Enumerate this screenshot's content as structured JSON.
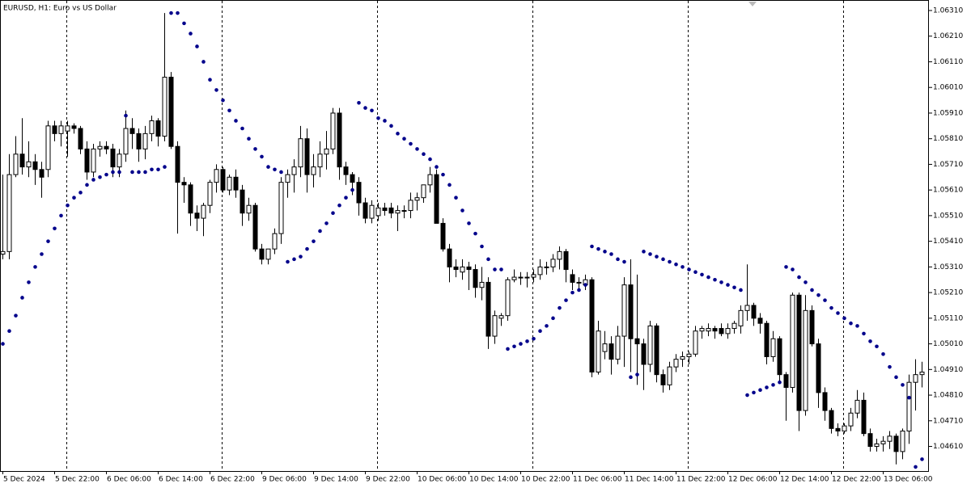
{
  "chart_data": {
    "type": "candlestick",
    "title": "EURUSD, H1:  Euro vs US Dollar",
    "categories": [
      "5 Dec 2024",
      null,
      null,
      null,
      null,
      null,
      null,
      null,
      "5 Dec 22:00",
      null,
      null,
      null,
      null,
      null,
      null,
      null,
      "6 Dec 06:00",
      null,
      null,
      null,
      null,
      null,
      null,
      null,
      "6 Dec 14:00",
      null,
      null,
      null,
      null,
      null,
      null,
      null,
      "6 Dec 22:00",
      null,
      null,
      null,
      null,
      null,
      null,
      null,
      "9 Dec 06:00",
      null,
      null,
      null,
      null,
      null,
      null,
      null,
      "9 Dec 14:00",
      null,
      null,
      null,
      null,
      null,
      null,
      null,
      "9 Dec 22:00",
      null,
      null,
      null,
      null,
      null,
      null,
      null,
      "10 Dec 06:00",
      null,
      null,
      null,
      null,
      null,
      null,
      null,
      "10 Dec 14:00",
      null,
      null,
      null,
      null,
      null,
      null,
      null,
      "10 Dec 22:00",
      null,
      null,
      null,
      null,
      null,
      null,
      null,
      "11 Dec 06:00",
      null,
      null,
      null,
      null,
      null,
      null,
      null,
      "11 Dec 14:00",
      null,
      null,
      null,
      null,
      null,
      null,
      null,
      "11 Dec 22:00",
      null,
      null,
      null,
      null,
      null,
      null,
      null,
      "12 Dec 06:00",
      null,
      null,
      null,
      null,
      null,
      null,
      null,
      "12 Dec 14:00",
      null,
      null,
      null,
      null,
      null,
      null,
      null,
      "12 Dec 22:00",
      null,
      null,
      null,
      null,
      null,
      null,
      null,
      "13 Dec 06:00",
      null,
      null,
      null,
      null,
      null,
      null
    ],
    "open": [
      1.0536,
      1.0537,
      1.0567,
      1.0575,
      1.057,
      1.0572,
      1.0569,
      1.0569,
      1.0586,
      1.0583,
      1.0584,
      1.0586,
      1.0585,
      1.0577,
      1.0568,
      1.0577,
      1.0578,
      1.0577,
      1.057,
      1.0575,
      1.0585,
      1.0583,
      1.0577,
      1.0583,
      1.0588,
      1.0582,
      1.0605,
      1.0578,
      1.0564,
      1.0563,
      1.0552,
      1.055,
      1.0555,
      1.0564,
      1.0569,
      1.0561,
      1.0566,
      1.0561,
      1.0552,
      1.0555,
      1.0538,
      1.0534,
      1.0538,
      1.0544,
      1.0564,
      1.0567,
      1.057,
      1.0581,
      1.0567,
      1.057,
      1.0575,
      1.0577,
      1.0591,
      1.057,
      1.0567,
      1.0564,
      1.0556,
      1.055,
      1.0551,
      1.0554,
      1.0554,
      1.0552,
      1.0553,
      1.0553,
      1.0557,
      1.0558,
      1.0563,
      1.0567,
      1.0548,
      1.0538,
      1.0531,
      1.0529,
      1.0531,
      1.053,
      1.0523,
      1.0525,
      1.0504,
      1.0511,
      1.0512,
      1.0526,
      1.0527,
      1.0527,
      1.0527,
      1.0528,
      1.0531,
      1.0531,
      1.0534,
      1.0537,
      1.0528,
      1.0525,
      1.0524,
      1.0526,
      1.049,
      1.0498,
      1.0501,
      1.0495,
      1.0504,
      1.0524,
      1.0503,
      1.0501,
      1.0493,
      1.0508,
      1.0489,
      1.0485,
      1.0492,
      1.0495,
      1.0496,
      1.0497,
      1.0506,
      1.0506,
      1.0507,
      1.0507,
      1.0505,
      1.0507,
      1.0508,
      1.0514,
      1.0516,
      1.0511,
      1.0509,
      1.0496,
      1.0503,
      1.0489,
      1.0484,
      1.052,
      1.0475,
      1.0514,
      1.0501,
      1.0482,
      1.0475,
      1.0468,
      1.0467,
      1.0469,
      1.0474,
      1.0479,
      1.0466,
      1.0461,
      1.0462,
      1.0463,
      1.0465,
      1.0459,
      1.0467,
      1.0486,
      1.0489
    ],
    "high": [
      1.0567,
      1.0575,
      1.0582,
      1.0589,
      1.058,
      1.0575,
      1.0572,
      1.0588,
      1.0588,
      1.0588,
      1.0588,
      1.0587,
      1.0586,
      1.058,
      1.0579,
      1.058,
      1.058,
      1.0579,
      1.0577,
      1.0592,
      1.0589,
      1.0585,
      1.0586,
      1.059,
      1.0589,
      1.063,
      1.0607,
      1.058,
      1.0566,
      1.0564,
      1.0555,
      1.0556,
      1.0565,
      1.0571,
      1.057,
      1.0567,
      1.0569,
      1.0563,
      1.0558,
      1.0556,
      1.054,
      1.0538,
      1.0546,
      1.0566,
      1.0569,
      1.0573,
      1.0586,
      1.0585,
      1.0575,
      1.058,
      1.0584,
      1.0593,
      1.0593,
      1.0572,
      1.0568,
      1.0566,
      1.0558,
      1.0557,
      1.0556,
      1.0556,
      1.0556,
      1.0555,
      1.0555,
      1.056,
      1.056,
      1.0563,
      1.057,
      1.0569,
      1.055,
      1.054,
      1.0534,
      1.0534,
      1.0533,
      1.0532,
      1.0531,
      1.0527,
      1.0514,
      1.0513,
      1.0527,
      1.053,
      1.0529,
      1.0529,
      1.053,
      1.0534,
      1.0533,
      1.0536,
      1.0539,
      1.0538,
      1.053,
      1.0527,
      1.0528,
      1.0527,
      1.051,
      1.0506,
      1.0504,
      1.0508,
      1.0527,
      1.0534,
      1.0528,
      1.0503,
      1.051,
      1.0509,
      1.0491,
      1.0494,
      1.0497,
      1.0498,
      1.0498,
      1.0508,
      1.0508,
      1.0509,
      1.0508,
      1.0509,
      1.0509,
      1.051,
      1.0516,
      1.0532,
      1.0517,
      1.0513,
      1.051,
      1.0506,
      1.0504,
      1.049,
      1.0521,
      1.0521,
      1.052,
      1.0516,
      1.0503,
      1.0484,
      1.0476,
      1.047,
      1.047,
      1.0476,
      1.0483,
      1.0482,
      1.0468,
      1.0464,
      1.0465,
      1.0467,
      1.0466,
      1.0468,
      1.0489,
      1.0495,
      1.0494
    ],
    "low": [
      1.0534,
      1.0534,
      1.0566,
      1.0567,
      1.0566,
      1.0563,
      1.0558,
      1.0566,
      1.058,
      1.0578,
      1.0574,
      1.0583,
      1.0575,
      1.0565,
      1.0566,
      1.0574,
      1.0575,
      1.0566,
      1.0566,
      1.0572,
      1.0577,
      1.0572,
      1.0573,
      1.058,
      1.0578,
      1.058,
      1.0577,
      1.0544,
      1.0556,
      1.0547,
      1.0545,
      1.0543,
      1.0552,
      1.056,
      1.056,
      1.0559,
      1.0558,
      1.0547,
      1.0549,
      1.0537,
      1.0532,
      1.0532,
      1.0536,
      1.054,
      1.0558,
      1.056,
      1.0566,
      1.056,
      1.0562,
      1.0566,
      1.0569,
      1.0575,
      1.0565,
      1.0563,
      1.0559,
      1.0551,
      1.0548,
      1.0548,
      1.0549,
      1.0551,
      1.055,
      1.0545,
      1.055,
      1.055,
      1.0553,
      1.0556,
      1.056,
      1.0548,
      1.0537,
      1.0525,
      1.0527,
      1.0526,
      1.0522,
      1.0519,
      1.0518,
      1.0499,
      1.0501,
      1.0508,
      1.051,
      1.0525,
      1.0524,
      1.0523,
      1.0525,
      1.0526,
      1.0528,
      1.0529,
      1.053,
      1.0525,
      1.0522,
      1.0522,
      1.0522,
      1.0488,
      1.0489,
      1.0495,
      1.0489,
      1.0493,
      1.0492,
      1.049,
      1.0485,
      1.0483,
      1.049,
      1.0486,
      1.0482,
      1.0483,
      1.049,
      1.0492,
      1.0493,
      1.0496,
      1.0503,
      1.0504,
      1.0503,
      1.0504,
      1.0503,
      1.0505,
      1.0505,
      1.051,
      1.0508,
      1.0505,
      1.0493,
      1.0494,
      1.0486,
      1.0471,
      1.0482,
      1.0467,
      1.0473,
      1.05,
      1.0476,
      1.0471,
      1.0466,
      1.0465,
      1.0466,
      1.0467,
      1.0472,
      1.0465,
      1.0459,
      1.0459,
      1.0459,
      1.046,
      1.0454,
      1.0456,
      1.0462,
      1.0475,
      1.0484
    ],
    "close": [
      1.0537,
      1.0567,
      1.0575,
      1.057,
      1.0572,
      1.0569,
      1.0566,
      1.0586,
      1.0583,
      1.0586,
      1.0586,
      1.0585,
      1.0577,
      1.0568,
      1.0577,
      1.0578,
      1.0577,
      1.057,
      1.0575,
      1.0585,
      1.0583,
      1.0577,
      1.0583,
      1.0588,
      1.0582,
      1.0605,
      1.0578,
      1.0564,
      1.0563,
      1.0552,
      1.055,
      1.0555,
      1.0564,
      1.0569,
      1.0561,
      1.0566,
      1.0561,
      1.0552,
      1.0555,
      1.0538,
      1.0534,
      1.0538,
      1.0544,
      1.0564,
      1.0567,
      1.057,
      1.0581,
      1.0567,
      1.057,
      1.0575,
      1.0577,
      1.0591,
      1.057,
      1.0567,
      1.0564,
      1.0556,
      1.055,
      1.0555,
      1.0554,
      1.0553,
      1.0552,
      1.0553,
      1.0553,
      1.0557,
      1.0558,
      1.0563,
      1.0567,
      1.0548,
      1.0538,
      1.0531,
      1.053,
      1.0531,
      1.053,
      1.0523,
      1.0525,
      1.0504,
      1.0512,
      1.0512,
      1.0526,
      1.0527,
      1.0527,
      1.0527,
      1.0528,
      1.0531,
      1.0531,
      1.0534,
      1.0537,
      1.053,
      1.0525,
      1.0525,
      1.0526,
      1.049,
      1.0506,
      1.0501,
      1.0495,
      1.0504,
      1.0524,
      1.0503,
      1.0501,
      1.0493,
      1.0508,
      1.0489,
      1.0485,
      1.0492,
      1.0495,
      1.0496,
      1.0497,
      1.0506,
      1.0507,
      1.0507,
      1.0506,
      1.0505,
      1.0507,
      1.0509,
      1.0514,
      1.0516,
      1.0511,
      1.0509,
      1.0496,
      1.0503,
      1.0489,
      1.0484,
      1.052,
      1.0475,
      1.0514,
      1.0501,
      1.0482,
      1.0475,
      1.0468,
      1.0467,
      1.0469,
      1.0474,
      1.0479,
      1.0466,
      1.0461,
      1.0462,
      1.0463,
      1.0465,
      1.0459,
      1.0467,
      1.0486,
      1.0489,
      1.049
    ],
    "up_color": "#ffffff",
    "down_color": "#000000",
    "wick_color": "#000000",
    "indicator": {
      "color": "#00008b",
      "values": [
        1.0501,
        1.0506,
        1.0512,
        1.0519,
        1.0525,
        1.0531,
        1.0536,
        1.0541,
        1.0546,
        1.0551,
        1.0555,
        1.0558,
        1.056,
        1.0563,
        1.0565,
        1.0566,
        1.0567,
        1.0568,
        1.0568,
        1.059,
        1.0568,
        1.0568,
        1.0568,
        1.0569,
        1.0569,
        1.057,
        1.063,
        1.063,
        1.0626,
        1.0622,
        1.0617,
        1.0611,
        1.0604,
        1.06,
        1.0596,
        1.0592,
        1.0588,
        1.0585,
        1.0581,
        1.0577,
        1.0574,
        1.057,
        1.0569,
        1.0568,
        1.0533,
        1.0534,
        1.0535,
        1.0538,
        1.0541,
        1.0545,
        1.0548,
        1.0552,
        1.0555,
        1.0558,
        1.0561,
        1.0595,
        1.0593,
        1.0592,
        1.0589,
        1.0588,
        1.0586,
        1.0583,
        1.0581,
        1.0579,
        1.0577,
        1.0575,
        1.0573,
        1.057,
        1.0567,
        1.0563,
        1.0558,
        1.0553,
        1.0548,
        1.0544,
        1.0539,
        1.0534,
        1.053,
        1.053,
        1.0499,
        1.05,
        1.0501,
        1.0502,
        1.0503,
        1.0506,
        1.0508,
        1.0511,
        1.0515,
        1.0518,
        1.0521,
        1.0522,
        1.0524,
        1.0539,
        1.0538,
        1.0537,
        1.0536,
        1.0534,
        1.0533,
        1.0488,
        1.0489,
        1.0537,
        1.0536,
        1.0535,
        1.0534,
        1.0533,
        1.0532,
        1.0531,
        1.053,
        1.0529,
        1.0528,
        1.0527,
        1.0526,
        1.0525,
        1.0524,
        1.0523,
        1.0522,
        1.0481,
        1.0482,
        1.0483,
        1.0484,
        1.0485,
        1.0486,
        1.0531,
        1.053,
        1.0527,
        1.0525,
        1.0522,
        1.052,
        1.0518,
        1.0515,
        1.0513,
        1.0511,
        1.0509,
        1.0508,
        1.0505,
        1.0502,
        1.05,
        1.0497,
        1.0492,
        1.0488,
        1.0485,
        1.048,
        1.0453,
        1.0456
      ]
    },
    "ylim": [
      1.04514,
      1.06351
    ],
    "yticks": [
      {
        "value": 1.0631,
        "label": "1.06310"
      },
      {
        "value": 1.0621,
        "label": "1.06210"
      },
      {
        "value": 1.0611,
        "label": "1.06110"
      },
      {
        "value": 1.0601,
        "label": "1.06010"
      },
      {
        "value": 1.0591,
        "label": "1.05910"
      },
      {
        "value": 1.0581,
        "label": "1.05810"
      },
      {
        "value": 1.0571,
        "label": "1.05710"
      },
      {
        "value": 1.0561,
        "label": "1.05610"
      },
      {
        "value": 1.0551,
        "label": "1.05510"
      },
      {
        "value": 1.0541,
        "label": "1.05410"
      },
      {
        "value": 1.0531,
        "label": "1.05310"
      },
      {
        "value": 1.0521,
        "label": "1.05210"
      },
      {
        "value": 1.0511,
        "label": "1.05110"
      },
      {
        "value": 1.0501,
        "label": "1.05010"
      },
      {
        "value": 1.0491,
        "label": "1.04910"
      },
      {
        "value": 1.0481,
        "label": "1.04810"
      },
      {
        "value": 1.0471,
        "label": "1.04710"
      },
      {
        "value": 1.0461,
        "label": "1.04610"
      }
    ]
  }
}
